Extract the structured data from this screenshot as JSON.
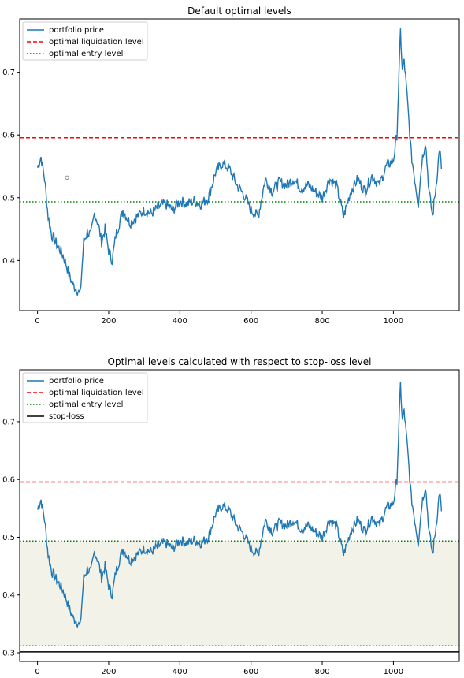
{
  "chart_data": [
    {
      "type": "line",
      "title": "Default optimal levels",
      "xlabel": "",
      "ylabel": "",
      "xlim": [
        -50,
        1185
      ],
      "ylim": [
        0.32,
        0.785
      ],
      "xticks": [
        0,
        200,
        400,
        600,
        800,
        1000
      ],
      "yticks": [
        0.4,
        0.5,
        0.6,
        0.7
      ],
      "xtick_labels": [
        "0",
        "200",
        "400",
        "600",
        "800",
        "1000"
      ],
      "ytick_labels": [
        "0.4",
        "0.5",
        "0.6",
        "0.7"
      ],
      "grid": false,
      "legend_position": "top-left",
      "series": [
        {
          "name": "portfolio price",
          "color": "#1f77b4",
          "style": "solid",
          "x": [
            0,
            10,
            20,
            30,
            40,
            50,
            60,
            70,
            80,
            90,
            100,
            110,
            120,
            130,
            140,
            150,
            160,
            170,
            180,
            190,
            200,
            210,
            220,
            240,
            260,
            280,
            300,
            320,
            340,
            360,
            380,
            400,
            420,
            440,
            460,
            480,
            500,
            520,
            540,
            560,
            580,
            600,
            620,
            640,
            660,
            680,
            700,
            720,
            740,
            760,
            780,
            800,
            820,
            840,
            860,
            880,
            900,
            920,
            940,
            960,
            980,
            1000,
            1010,
            1020,
            1025,
            1030,
            1040,
            1050,
            1060,
            1070,
            1080,
            1090,
            1100,
            1110,
            1120,
            1130,
            1135
          ],
          "values": [
            0.548,
            0.565,
            0.53,
            0.47,
            0.44,
            0.43,
            0.42,
            0.41,
            0.395,
            0.375,
            0.36,
            0.355,
            0.345,
            0.43,
            0.445,
            0.44,
            0.475,
            0.46,
            0.43,
            0.45,
            0.415,
            0.4,
            0.44,
            0.48,
            0.46,
            0.47,
            0.48,
            0.475,
            0.485,
            0.49,
            0.48,
            0.495,
            0.49,
            0.495,
            0.49,
            0.5,
            0.54,
            0.555,
            0.545,
            0.52,
            0.505,
            0.48,
            0.47,
            0.53,
            0.51,
            0.525,
            0.52,
            0.53,
            0.515,
            0.52,
            0.51,
            0.5,
            0.53,
            0.52,
            0.47,
            0.51,
            0.53,
            0.51,
            0.535,
            0.52,
            0.55,
            0.56,
            0.6,
            0.765,
            0.7,
            0.72,
            0.65,
            0.57,
            0.53,
            0.49,
            0.56,
            0.59,
            0.51,
            0.47,
            0.52,
            0.58,
            0.545
          ]
        },
        {
          "name": "optimal liquidation level",
          "color": "#ff0000",
          "style": "dashed",
          "y": 0.5955
        },
        {
          "name": "optimal entry level",
          "color": "#008000",
          "style": "dotted",
          "y": 0.4935
        }
      ],
      "markers": [
        {
          "x": 83,
          "y": 0.532,
          "color": "#8c8c8c",
          "shape": "hollow-circle"
        }
      ]
    },
    {
      "type": "line",
      "title": "Optimal levels calculated with respect to stop-loss level",
      "xlabel": "",
      "ylabel": "",
      "xlim": [
        -50,
        1185
      ],
      "ylim": [
        0.285,
        0.79
      ],
      "xticks": [
        0,
        200,
        400,
        600,
        800,
        1000
      ],
      "yticks": [
        0.3,
        0.4,
        0.5,
        0.6,
        0.7
      ],
      "xtick_labels": [
        "0",
        "200",
        "400",
        "600",
        "800",
        "1000"
      ],
      "ytick_labels": [
        "0.3",
        "0.4",
        "0.5",
        "0.6",
        "0.7"
      ],
      "grid": false,
      "legend_position": "top-left",
      "shaded_band": {
        "from": 0.312,
        "to": 0.4935,
        "color": "#f2f2e8"
      },
      "series": [
        {
          "name": "portfolio price",
          "color": "#1f77b4",
          "style": "solid",
          "x": [
            0,
            10,
            20,
            30,
            40,
            50,
            60,
            70,
            80,
            90,
            100,
            110,
            120,
            130,
            140,
            150,
            160,
            170,
            180,
            190,
            200,
            210,
            220,
            240,
            260,
            280,
            300,
            320,
            340,
            360,
            380,
            400,
            420,
            440,
            460,
            480,
            500,
            520,
            540,
            560,
            580,
            600,
            620,
            640,
            660,
            680,
            700,
            720,
            740,
            760,
            780,
            800,
            820,
            840,
            860,
            880,
            900,
            920,
            940,
            960,
            980,
            1000,
            1010,
            1020,
            1025,
            1030,
            1040,
            1050,
            1060,
            1070,
            1080,
            1090,
            1100,
            1110,
            1120,
            1130,
            1135
          ],
          "values": [
            0.548,
            0.565,
            0.53,
            0.47,
            0.44,
            0.43,
            0.42,
            0.41,
            0.395,
            0.375,
            0.36,
            0.355,
            0.345,
            0.43,
            0.445,
            0.44,
            0.475,
            0.46,
            0.43,
            0.45,
            0.415,
            0.4,
            0.44,
            0.48,
            0.46,
            0.47,
            0.48,
            0.475,
            0.485,
            0.49,
            0.48,
            0.495,
            0.49,
            0.495,
            0.49,
            0.5,
            0.54,
            0.555,
            0.545,
            0.52,
            0.505,
            0.48,
            0.47,
            0.53,
            0.51,
            0.525,
            0.52,
            0.53,
            0.515,
            0.52,
            0.51,
            0.5,
            0.53,
            0.52,
            0.47,
            0.51,
            0.53,
            0.51,
            0.535,
            0.52,
            0.55,
            0.56,
            0.6,
            0.765,
            0.7,
            0.72,
            0.65,
            0.57,
            0.53,
            0.49,
            0.56,
            0.59,
            0.51,
            0.47,
            0.52,
            0.58,
            0.545
          ]
        },
        {
          "name": "optimal liquidation level",
          "color": "#ff0000",
          "style": "dashed",
          "y": 0.5955
        },
        {
          "name": "optimal entry level",
          "color": "#008000",
          "style": "dotted",
          "y": 0.4935
        },
        {
          "name": "",
          "color": "#008000",
          "style": "dotted",
          "y": 0.312
        },
        {
          "name": "stop-loss",
          "color": "#000000",
          "style": "solid",
          "y": 0.3015
        }
      ]
    }
  ]
}
